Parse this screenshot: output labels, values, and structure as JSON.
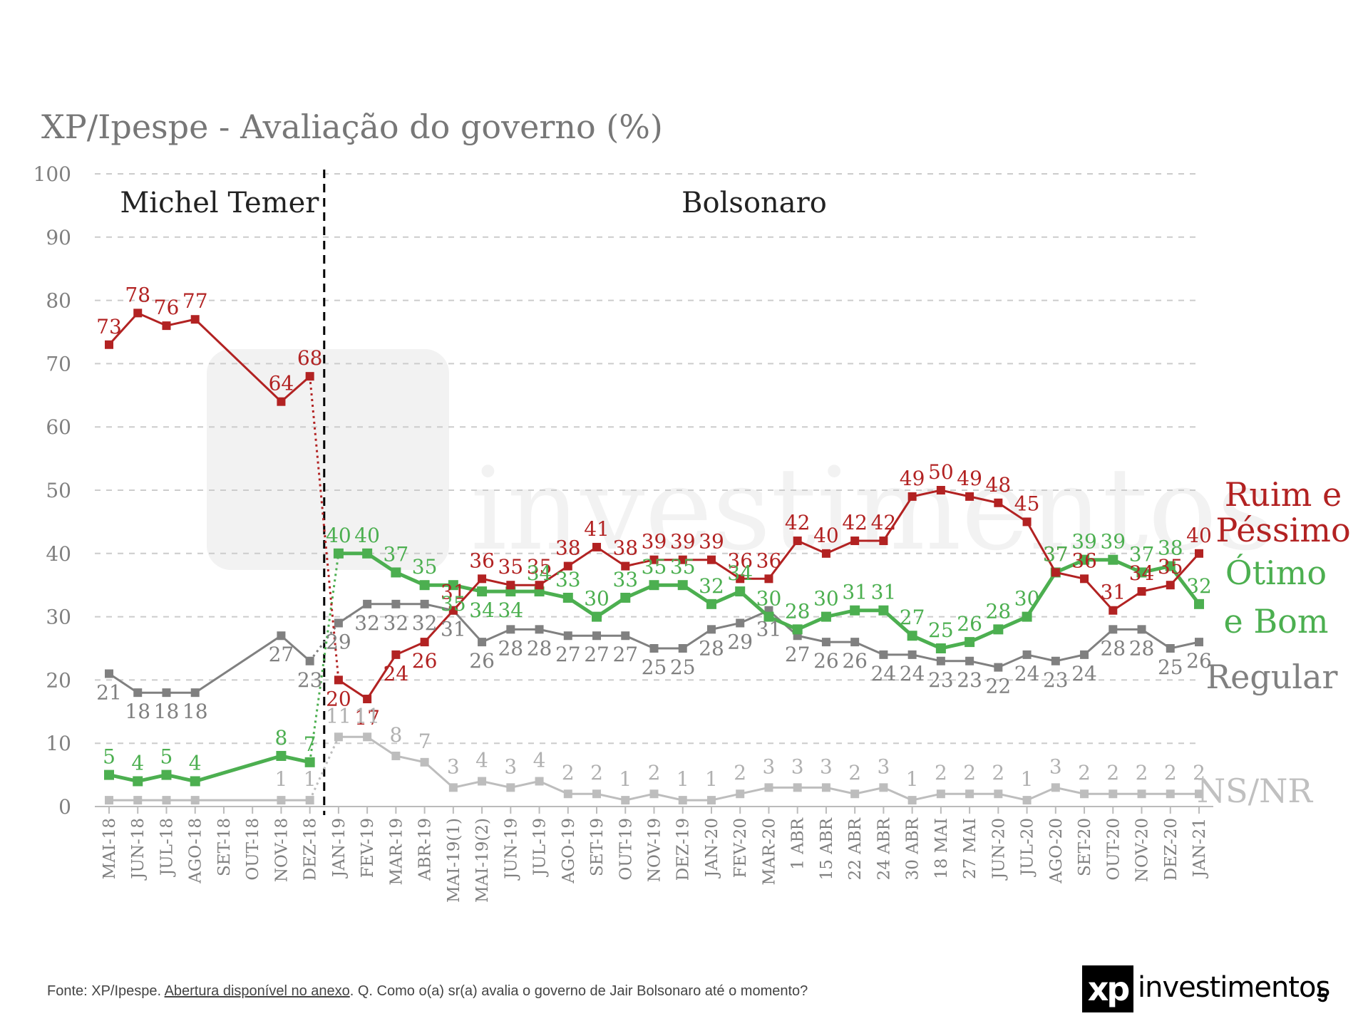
{
  "chart_data": {
    "type": "line",
    "title": "XP/Ipespe - Avaliação do governo (%)",
    "ylim": [
      0,
      100
    ],
    "yticks": [
      0,
      10,
      20,
      30,
      40,
      50,
      60,
      70,
      80,
      90,
      100
    ],
    "grid": true,
    "periods": [
      {
        "name": "Michel Temer",
        "from": "MAI-18",
        "to": "DEZ-18"
      },
      {
        "name": "Bolsonaro",
        "from": "JAN-19",
        "to": "JAN-21"
      }
    ],
    "categories": [
      "MAI-18",
      "JUN-18",
      "JUL-18",
      "AGO-18",
      "SET-18",
      "OUT-18",
      "NOV-18",
      "DEZ-18",
      "JAN-19",
      "FEV-19",
      "MAR-19",
      "ABR-19",
      "MAI-19(1)",
      "MAI-19(2)",
      "JUN-19",
      "JUL-19",
      "AGO-19",
      "SET-19",
      "OUT-19",
      "NOV-19",
      "DEZ-19",
      "JAN-20",
      "FEV-20",
      "MAR-20",
      "1 ABR",
      "15 ABR",
      "22 ABR",
      "24 ABR",
      "30 ABR",
      "18 MAI",
      "27 MAI",
      "JUN-20",
      "JUL-20",
      "AGO-20",
      "SET-20",
      "OUT-20",
      "NOV-20",
      "DEZ-20",
      "JAN-21"
    ],
    "series": [
      {
        "name": "Ruim e Péssimo",
        "legend": [
          "Ruim e",
          "Péssimo"
        ],
        "color": "#b22222",
        "values": [
          73,
          78,
          76,
          77,
          null,
          null,
          64,
          68,
          20,
          17,
          24,
          26,
          31,
          36,
          35,
          35,
          38,
          41,
          38,
          39,
          39,
          39,
          36,
          36,
          42,
          40,
          42,
          42,
          49,
          50,
          49,
          48,
          45,
          37,
          36,
          31,
          34,
          35,
          40
        ]
      },
      {
        "name": "Ótimo e Bom",
        "legend": [
          "Ótimo",
          "e Bom"
        ],
        "color": "#4caf50",
        "values": [
          5,
          4,
          5,
          4,
          null,
          null,
          8,
          7,
          40,
          40,
          37,
          35,
          35,
          34,
          34,
          34,
          33,
          30,
          33,
          35,
          35,
          32,
          34,
          30,
          28,
          30,
          31,
          31,
          27,
          25,
          26,
          28,
          30,
          37,
          39,
          39,
          37,
          38,
          32
        ]
      },
      {
        "name": "Regular",
        "legend": [
          "Regular"
        ],
        "color": "#808080",
        "values": [
          21,
          18,
          18,
          18,
          null,
          null,
          27,
          23,
          29,
          32,
          32,
          32,
          31,
          26,
          28,
          28,
          27,
          27,
          27,
          25,
          25,
          28,
          29,
          31,
          27,
          26,
          26,
          24,
          24,
          23,
          23,
          22,
          24,
          23,
          24,
          28,
          28,
          25,
          26
        ]
      },
      {
        "name": "NS/NR",
        "legend": [
          "NS/NR"
        ],
        "color": "#bdbdbd",
        "values": [
          1,
          1,
          1,
          1,
          null,
          null,
          1,
          1,
          11,
          11,
          8,
          7,
          3,
          4,
          3,
          4,
          2,
          2,
          1,
          2,
          1,
          1,
          2,
          3,
          3,
          3,
          2,
          3,
          1,
          2,
          2,
          2,
          1,
          3,
          2,
          2,
          2,
          2,
          2
        ]
      }
    ],
    "value_labels": {
      "Ruim e Péssimo": [
        "73",
        "78",
        "76",
        "77",
        null,
        null,
        "64",
        "68",
        "20",
        "17",
        "24",
        "26",
        "31",
        "36",
        "35",
        "35",
        "38",
        "41",
        "38",
        "39",
        "39",
        "39",
        "36",
        "36",
        "42",
        "40",
        "42",
        "42",
        "49",
        "50",
        "49",
        "48",
        "45",
        "37",
        "36",
        "31",
        "34",
        "35",
        "40"
      ],
      "Ótimo e Bom": [
        "5",
        "4",
        "5",
        "4",
        null,
        null,
        "8",
        "7",
        "40",
        "40",
        "37",
        "35",
        "35",
        "34",
        "34",
        "34",
        "33",
        "30",
        "33",
        "35",
        "35",
        "32",
        "34",
        "30",
        "28",
        "30",
        "31",
        "31",
        "27",
        "25",
        "26",
        "28",
        "30",
        "37",
        "39",
        "39",
        "37",
        "38",
        "32"
      ],
      "Regular": [
        "21",
        "18",
        "18",
        "18",
        null,
        null,
        "27",
        "23",
        "29",
        "32",
        "32",
        "32",
        "31",
        "26",
        "28",
        "28",
        "27",
        "27",
        "27",
        "25",
        "25",
        "28",
        "29",
        "31",
        "27",
        "26",
        "26",
        "24",
        "24",
        "23",
        "23",
        "22",
        "24",
        "23",
        "24",
        "28",
        "28",
        "25",
        "26"
      ],
      "NS/NR": [
        null,
        null,
        null,
        null,
        null,
        null,
        "1",
        "1",
        "11",
        "11",
        "8",
        "7",
        "3",
        "4",
        "3",
        "4",
        "2",
        "2",
        "1",
        "2",
        "1",
        "1",
        "2",
        "3",
        "3",
        "3",
        "2",
        "3",
        "1",
        "2",
        "2",
        "2",
        "1",
        "3",
        "2",
        "2",
        "2",
        "2",
        "2"
      ]
    }
  },
  "watermark": "xp investimentos",
  "footer": {
    "prefix": "Fonte: XP/Ipespe. ",
    "link": "Abertura disponível no anexo",
    "suffix": ". Q. Como o(a) sr(a) avalia o governo de Jair Bolsonaro até o momento?"
  },
  "logo": {
    "mark": "xp",
    "text": "investimentos"
  },
  "page_number": "5"
}
